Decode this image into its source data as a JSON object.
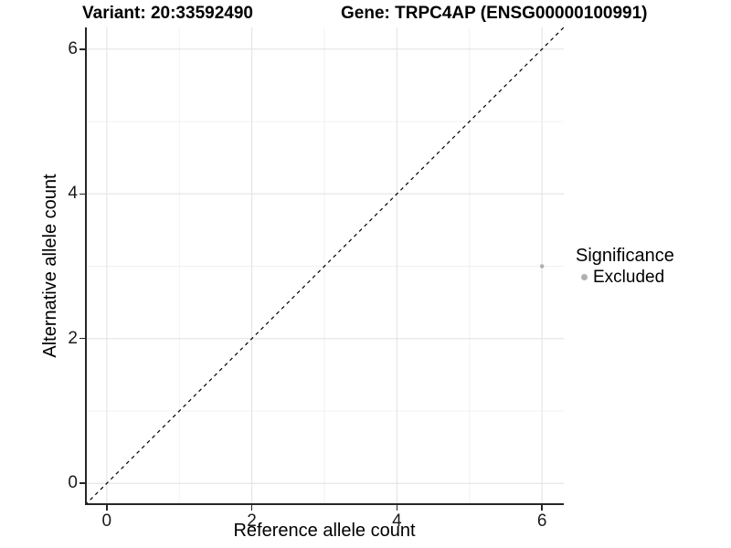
{
  "titles": {
    "variant": "Variant: 20:33592490",
    "gene": "Gene: TRPC4AP (ENSG00000100991)"
  },
  "axes": {
    "x_label": "Reference allele count",
    "y_label": "Alternative allele count"
  },
  "legend": {
    "title": "Significance",
    "items": [
      {
        "label": "Excluded",
        "color": "#b0b0b0"
      }
    ]
  },
  "colors": {
    "background": "#ffffff",
    "grid_major": "#e6e6e6",
    "grid_minor": "#f0f0f0",
    "axis_line": "#262626",
    "tick_label": "#1a1a1a",
    "reference_line": "#000000",
    "point": "#b0b0b0"
  },
  "chart_data": {
    "type": "scatter",
    "title": "Variant: 20:33592490   Gene: TRPC4AP (ENSG00000100991)",
    "xlabel": "Reference allele count",
    "ylabel": "Alternative allele count",
    "xlim": [
      -0.3,
      6.3
    ],
    "ylim": [
      -0.3,
      6.3
    ],
    "x_ticks": [
      0,
      2,
      4,
      6
    ],
    "y_ticks": [
      0,
      2,
      4,
      6
    ],
    "x_minor_ticks": [
      1,
      3,
      5
    ],
    "y_minor_ticks": [
      1,
      3,
      5
    ],
    "grid": true,
    "legend_position": "right",
    "series": [
      {
        "name": "Excluded",
        "color": "#b0b0b0",
        "points": [
          {
            "x": 6,
            "y": 3
          }
        ]
      }
    ],
    "reference_line": {
      "type": "identity",
      "equation": "y = x",
      "style": "dashed"
    }
  }
}
